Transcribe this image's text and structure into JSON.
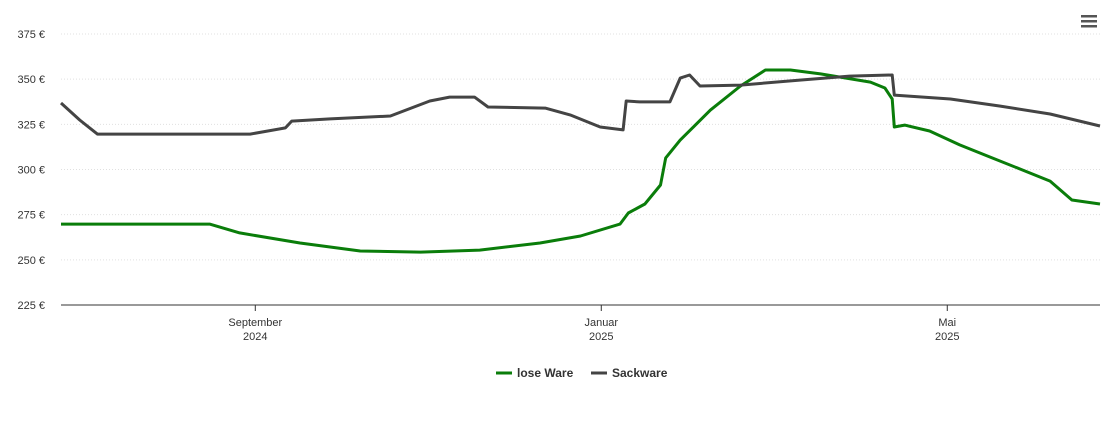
{
  "chart_data": {
    "type": "line",
    "xlim": [
      2024.48,
      2025.48
    ],
    "xticks": [
      {
        "value": 2024.667,
        "label": "September 2024"
      },
      {
        "value": 2025.0,
        "label": "Januar 2025"
      },
      {
        "value": 2025.333,
        "label": "Mai 2025"
      }
    ],
    "ylim": [
      225,
      375
    ],
    "yticks": [
      {
        "value": 225,
        "label": "225 €"
      },
      {
        "value": 250,
        "label": "250 €"
      },
      {
        "value": 275,
        "label": "275 €"
      },
      {
        "value": 300,
        "label": "300 €"
      },
      {
        "value": 325,
        "label": "325 €"
      },
      {
        "value": 350,
        "label": "350 €"
      },
      {
        "value": 375,
        "label": "375 €"
      }
    ],
    "grid": true,
    "legend": "bottom",
    "series": [
      {
        "name": "lose Ware",
        "color": "#0a7d0a",
        "x": [
          2024.48,
          2024.623,
          2024.652,
          2024.71,
          2024.768,
          2024.826,
          2024.883,
          2024.941,
          2024.98,
          2025.018,
          2025.026,
          2025.042,
          2025.057,
          2025.062,
          2025.076,
          2025.105,
          2025.134,
          2025.158,
          2025.182,
          2025.211,
          2025.259,
          2025.273,
          2025.28,
          2025.282,
          2025.292,
          2025.316,
          2025.345,
          2025.374,
          2025.403,
          2025.432,
          2025.453,
          2025.48
        ],
        "values": [
          269.8,
          269.8,
          264.9,
          259.3,
          254.9,
          254.3,
          255.4,
          259.3,
          263.2,
          269.8,
          275.9,
          280.9,
          291.4,
          306.4,
          316.3,
          332.9,
          346.2,
          355.1,
          355.1,
          352.9,
          348.4,
          345.1,
          339.0,
          323.5,
          324.6,
          321.3,
          313.6,
          306.9,
          300.3,
          293.6,
          283.1,
          280.9
        ]
      },
      {
        "name": "Sackware",
        "color": "#444444",
        "x": [
          2024.48,
          2024.498,
          2024.515,
          2024.662,
          2024.696,
          2024.702,
          2024.739,
          2024.797,
          2024.835,
          2024.854,
          2024.878,
          2024.891,
          2024.946,
          2024.97,
          2024.999,
          2025.021,
          2025.024,
          2025.037,
          2025.066,
          2025.076,
          2025.085,
          2025.095,
          2025.134,
          2025.191,
          2025.239,
          2025.28,
          2025.282,
          2025.336,
          2025.384,
          2025.432,
          2025.48
        ],
        "values": [
          336.8,
          327.4,
          319.6,
          319.6,
          323.0,
          326.8,
          328.0,
          329.6,
          337.9,
          340.1,
          340.1,
          334.6,
          334.0,
          330.2,
          323.5,
          321.9,
          337.9,
          337.4,
          337.4,
          350.6,
          352.3,
          346.2,
          346.7,
          349.5,
          351.7,
          352.3,
          341.2,
          339.0,
          335.1,
          330.7,
          324.1
        ]
      }
    ]
  }
}
